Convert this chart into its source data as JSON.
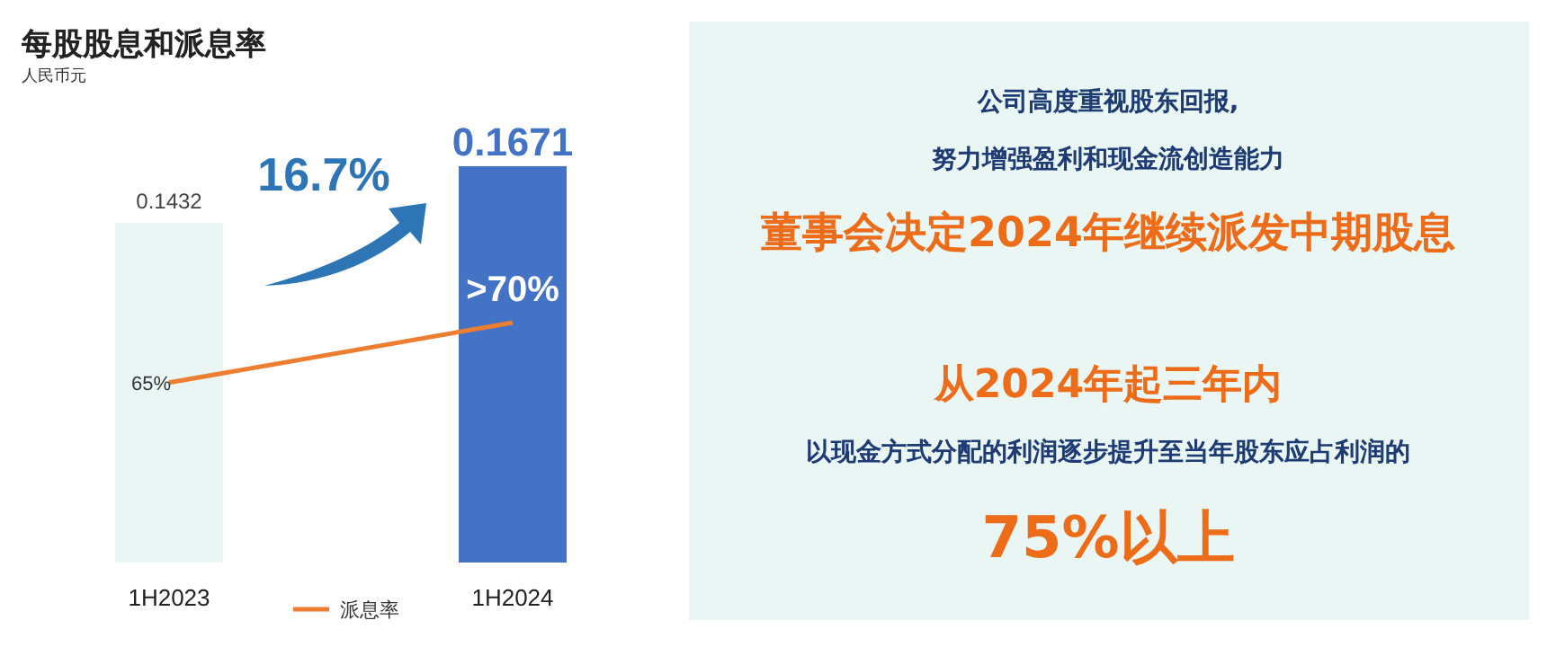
{
  "chart_data": [
    {
      "type": "bar",
      "title": "每股股息和派息率",
      "subtitle": "人民币元",
      "categories": [
        "1H2023",
        "1H2024"
      ],
      "tick_labels": "x",
      "legend": "bottom",
      "annotations": [
        "16.7%"
      ],
      "series": [
        {
          "type": "bar",
          "colors": [
            "#e9f6f3",
            "#4472c4"
          ],
          "values": [
            0.1432,
            0.1671
          ],
          "value_labels": [
            "0.1432",
            "0.1671"
          ]
        },
        {
          "type": "line",
          "name": "派息率",
          "color": "#ed7d31",
          "axis": "y2",
          "values": [
            65,
            70
          ],
          "value_labels": [
            "65%",
            ">70%"
          ]
        }
      ]
    },
    {
      "type": "other",
      "annotations": [
        "公司高度重视股东回报,",
        "努力增强盈利和现金流创造能力",
        "董事会决定2024年继续派发中期股息",
        "从2024年起三年内",
        "以现金方式分配的利润逐步提升至当年股东应占利润的",
        "75%以上"
      ]
    }
  ]
}
